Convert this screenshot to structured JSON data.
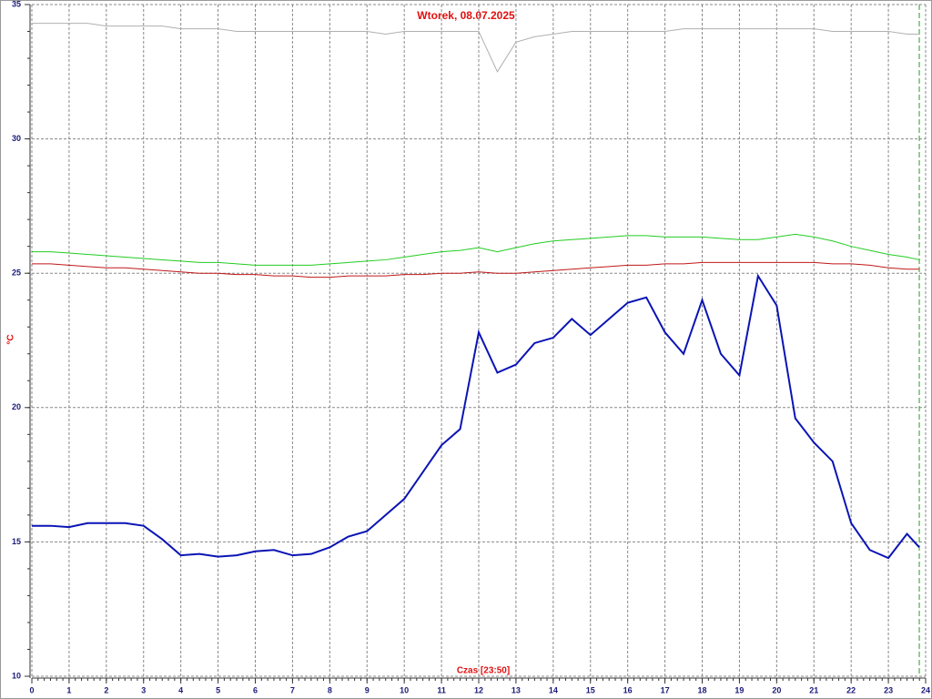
{
  "chart_data": {
    "type": "line",
    "title": "Wtorek, 08.07.2025",
    "y_label": "°C",
    "x_label": "Czas [23:50]",
    "x": [
      0,
      0.5,
      1,
      1.5,
      2,
      2.5,
      3,
      3.5,
      4,
      4.5,
      5,
      5.5,
      6,
      6.5,
      7,
      7.5,
      8,
      8.5,
      9,
      9.5,
      10,
      10.5,
      11,
      11.5,
      12,
      12.5,
      13,
      13.5,
      14,
      14.5,
      15,
      15.5,
      16,
      16.5,
      17,
      17.5,
      18,
      18.5,
      19,
      19.5,
      20,
      20.5,
      21,
      21.5,
      22,
      22.5,
      23,
      23.5,
      23.83
    ],
    "series": [
      {
        "color": "#b0b0b0",
        "values": [
          34.3,
          34.3,
          34.3,
          34.3,
          34.2,
          34.2,
          34.2,
          34.2,
          34.1,
          34.1,
          34.1,
          34.0,
          34.0,
          34.0,
          34.0,
          34.0,
          34.0,
          34.0,
          34.0,
          33.9,
          34.0,
          34.0,
          34.0,
          34.0,
          34.0,
          32.5,
          33.6,
          33.8,
          33.9,
          34.0,
          34.0,
          34.0,
          34.0,
          34.0,
          34.0,
          34.1,
          34.1,
          34.1,
          34.1,
          34.1,
          34.1,
          34.1,
          34.1,
          34.0,
          34.0,
          34.0,
          34.0,
          33.9,
          33.9
        ]
      },
      {
        "color": "#22cc22",
        "values": [
          25.8,
          25.8,
          25.75,
          25.7,
          25.65,
          25.6,
          25.55,
          25.5,
          25.45,
          25.4,
          25.4,
          25.35,
          25.3,
          25.3,
          25.3,
          25.3,
          25.35,
          25.4,
          25.45,
          25.5,
          25.6,
          25.7,
          25.8,
          25.85,
          25.95,
          25.8,
          25.95,
          26.1,
          26.2,
          26.25,
          26.3,
          26.35,
          26.4,
          26.4,
          26.35,
          26.35,
          26.35,
          26.3,
          26.25,
          26.25,
          26.35,
          26.45,
          26.35,
          26.2,
          26.0,
          25.85,
          25.7,
          25.6,
          25.5
        ]
      },
      {
        "color": "#c01818",
        "values": [
          25.35,
          25.35,
          25.3,
          25.25,
          25.2,
          25.2,
          25.15,
          25.1,
          25.05,
          25.0,
          25.0,
          24.95,
          24.95,
          24.9,
          24.9,
          24.85,
          24.85,
          24.9,
          24.9,
          24.9,
          24.95,
          24.95,
          25.0,
          25.0,
          25.05,
          25.0,
          25.0,
          25.05,
          25.1,
          25.15,
          25.2,
          25.25,
          25.3,
          25.3,
          25.35,
          25.35,
          25.4,
          25.4,
          25.4,
          25.4,
          25.4,
          25.4,
          25.4,
          25.35,
          25.35,
          25.3,
          25.2,
          25.15,
          25.15
        ]
      },
      {
        "color": "#0a14b4",
        "values": [
          15.6,
          15.6,
          15.55,
          15.7,
          15.7,
          15.7,
          15.6,
          15.1,
          14.5,
          14.55,
          14.45,
          14.5,
          14.65,
          14.7,
          14.5,
          14.55,
          14.8,
          15.2,
          15.4,
          16.0,
          16.6,
          17.6,
          18.6,
          19.2,
          22.8,
          21.3,
          21.6,
          22.4,
          22.6,
          23.3,
          22.7,
          23.3,
          23.9,
          24.1,
          22.8,
          22.0,
          24.0,
          22.0,
          21.2,
          24.9,
          23.8,
          19.6,
          18.7,
          18.0,
          15.7,
          14.7,
          14.4,
          15.3,
          14.8
        ]
      }
    ],
    "cursor_x": 23.83,
    "cursor_color": "#20a020",
    "xlim": [
      0,
      24
    ],
    "xticks": [
      0,
      1,
      2,
      3,
      4,
      5,
      6,
      7,
      8,
      9,
      10,
      11,
      12,
      13,
      14,
      15,
      16,
      17,
      18,
      19,
      20,
      21,
      22,
      23,
      24
    ],
    "ylim": [
      10,
      35
    ],
    "yticks": [
      10,
      15,
      20,
      25,
      30,
      35
    ],
    "grid": true
  }
}
